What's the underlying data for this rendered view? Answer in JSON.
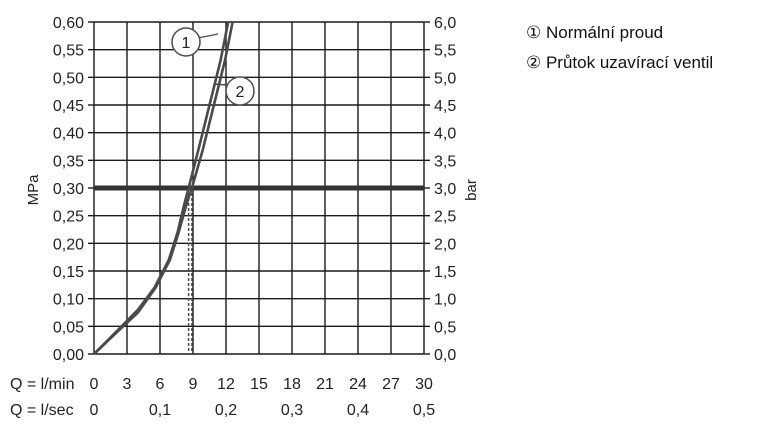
{
  "chart_data": {
    "type": "line",
    "ylabel_left": "MPa",
    "ylabel_right": "bar",
    "x_rows": [
      {
        "label": "Q = l/min",
        "ticks": [
          "0",
          "3",
          "6",
          "9",
          "12",
          "15",
          "18",
          "21",
          "24",
          "27",
          "30"
        ]
      },
      {
        "label": "Q = l/sec",
        "ticks": [
          "0",
          "0,1",
          "0,2",
          "0,3",
          "0,4",
          "0,5"
        ]
      }
    ],
    "y_ticks_left": [
      "0,00",
      "0,05",
      "0,10",
      "0,15",
      "0,20",
      "0,25",
      "0,30",
      "0,35",
      "0,40",
      "0,45",
      "0,50",
      "0,55",
      "0,60"
    ],
    "y_ticks_right": [
      "0,0",
      "0,5",
      "1,0",
      "1,5",
      "2,0",
      "2,5",
      "3,0",
      "3,5",
      "4,0",
      "4,5",
      "5,0",
      "5,5",
      "6,0"
    ],
    "xlim": [
      0,
      30
    ],
    "ylim": [
      0,
      0.6
    ],
    "grid": true,
    "reference_line": {
      "y": 0.3
    },
    "series": [
      {
        "name": "Normální proud",
        "marker": "1",
        "points": [
          [
            0,
            0
          ],
          [
            2,
            0.04
          ],
          [
            4,
            0.08
          ],
          [
            5.5,
            0.12
          ],
          [
            6.8,
            0.17
          ],
          [
            7.6,
            0.22
          ],
          [
            8.2,
            0.27
          ],
          [
            8.6,
            0.3
          ],
          [
            9.5,
            0.37
          ],
          [
            10.5,
            0.45
          ],
          [
            11.5,
            0.53
          ],
          [
            12.2,
            0.6
          ]
        ]
      },
      {
        "name": "Průtok uzavírací ventil",
        "marker": "2",
        "points": [
          [
            0,
            0
          ],
          [
            2,
            0.038
          ],
          [
            4,
            0.075
          ],
          [
            5.6,
            0.12
          ],
          [
            6.9,
            0.17
          ],
          [
            7.7,
            0.22
          ],
          [
            8.4,
            0.27
          ],
          [
            8.9,
            0.3
          ],
          [
            9.9,
            0.37
          ],
          [
            10.9,
            0.45
          ],
          [
            11.9,
            0.53
          ],
          [
            12.6,
            0.6
          ]
        ]
      }
    ],
    "legend": {
      "position": "top-right",
      "items": [
        {
          "symbol": "①",
          "label": "Normální proud"
        },
        {
          "symbol": "②",
          "label": "Průtok uzavírací ventil"
        }
      ]
    },
    "colors": {
      "line": "#4a4a4a",
      "grid": "#1a1a1a",
      "reference": "#333333"
    }
  }
}
